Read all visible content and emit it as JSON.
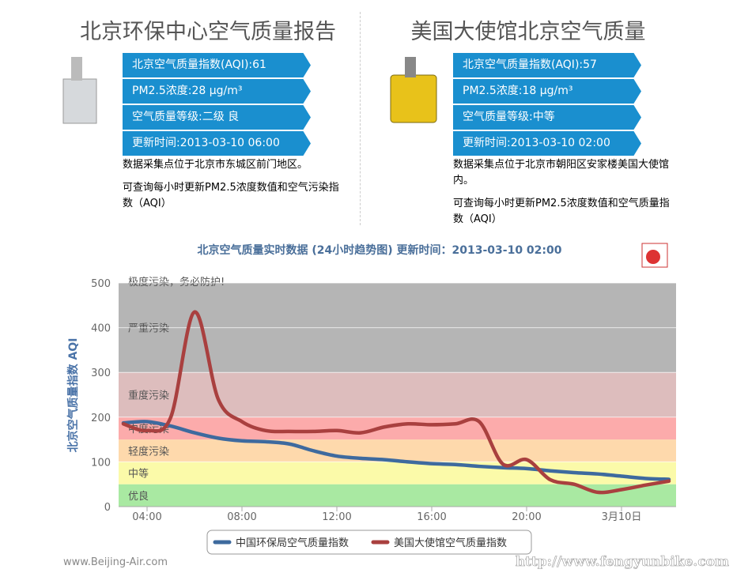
{
  "left_panel": {
    "title": "北京环保中心空气质量报告",
    "rows": [
      "北京空气质量指数(AQI):61",
      "PM2.5浓度:28 μg/m³",
      "空气质量等级:二级 良",
      "更新时间:2013-03-10 06:00"
    ],
    "notes": [
      "数据采集点位于北京市东城区前门地区。",
      "可查询每小时更新PM2.5浓度数值和空气污染指数（AQI）"
    ]
  },
  "right_panel": {
    "title": "美国大使馆北京空气质量",
    "rows": [
      "北京空气质量指数(AQI):57",
      "PM2.5浓度:18 μg/m³",
      "空气质量等级:中等",
      "更新时间:2013-03-10 02:00"
    ],
    "notes": [
      "数据采集点位于北京市朝阳区安家楼美国大使馆内。",
      "可查询每小时更新PM2.5浓度数值和空气质量指数（AQI）"
    ]
  },
  "chart_data": {
    "type": "line",
    "title": "北京空气质量实时数据 (24小时趋势图) 更新时间：2013-03-10 02:00",
    "ylabel": "北京空气质量指数 AQI",
    "x": [
      3,
      4,
      5,
      6,
      7,
      8,
      9,
      10,
      11,
      12,
      13,
      14,
      15,
      16,
      17,
      18,
      19,
      20,
      21,
      22,
      23,
      24,
      25,
      26
    ],
    "xlim": [
      2.8,
      26.3
    ],
    "xticks": [
      {
        "value": 4,
        "label": "04:00"
      },
      {
        "value": 8,
        "label": "08:00"
      },
      {
        "value": 12,
        "label": "12:00"
      },
      {
        "value": 16,
        "label": "16:00"
      },
      {
        "value": 20,
        "label": "20:00"
      },
      {
        "value": 24,
        "label": "3月10日"
      }
    ],
    "ylim": [
      0,
      500
    ],
    "yticks": [
      0,
      100,
      200,
      300,
      400,
      500
    ],
    "grid": true,
    "bands": [
      {
        "label": "优良",
        "from": 0,
        "to": 50,
        "color": "#a9e9a2"
      },
      {
        "label": "中等",
        "from": 50,
        "to": 100,
        "color": "#fbfaa9"
      },
      {
        "label": "轻度污染",
        "from": 100,
        "to": 150,
        "color": "#fed9ac"
      },
      {
        "label": "中度污染",
        "from": 150,
        "to": 200,
        "color": "#fcabab"
      },
      {
        "label": "重度污染",
        "from": 200,
        "to": 300,
        "color": "#ddbdbd"
      },
      {
        "label": "严重污染",
        "from": 300,
        "to": 500,
        "color": "#b5b5b5"
      }
    ],
    "annotation": "极度污染，务必防护!",
    "series": [
      {
        "name": "中国环保局空气质量指数",
        "color": "#3e6a9e",
        "values": [
          187,
          190,
          180,
          165,
          153,
          147,
          145,
          140,
          125,
          113,
          108,
          105,
          100,
          96,
          94,
          90,
          87,
          85,
          80,
          76,
          73,
          68,
          63,
          61
        ]
      },
      {
        "name": "美国大使馆空气质量指数",
        "color": "#a9403f",
        "values": [
          185,
          170,
          200,
          435,
          240,
          190,
          170,
          168,
          168,
          170,
          165,
          178,
          185,
          183,
          185,
          190,
          95,
          105,
          60,
          50,
          32,
          38,
          48,
          57
        ]
      }
    ]
  },
  "footer": {
    "credit": "www.Beijing-Air.com",
    "watermark": "http://www.fengyunbike.com"
  }
}
